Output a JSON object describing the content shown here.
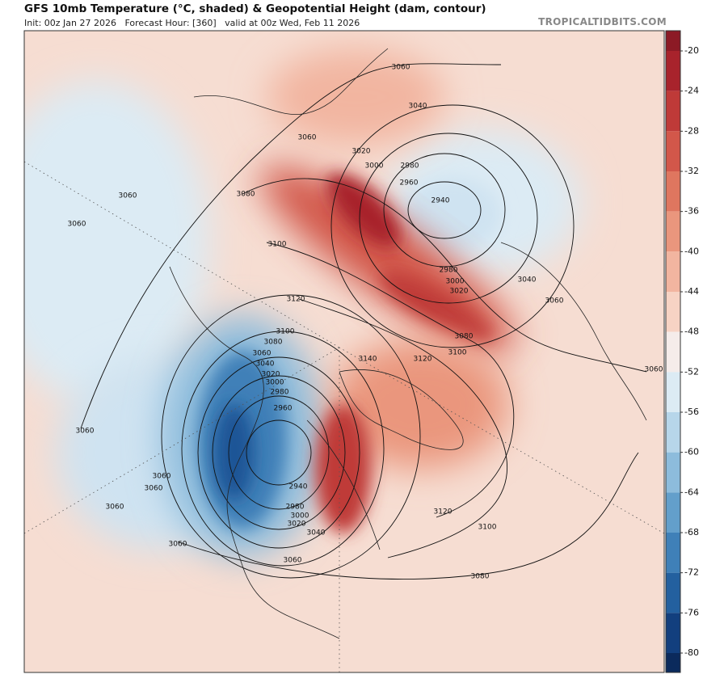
{
  "header": {
    "title": "GFS 10mb Temperature (°C, shaded) & Geopotential Height (dam, contour)",
    "subtitle": "Init: 00z Jan 27 2026   Forecast Hour: [360]   valid at 00z Wed, Feb 11 2026",
    "brand": "TROPICALTIDBITS.COM"
  },
  "colorbar": {
    "ticks": [
      -20,
      -24,
      -28,
      -32,
      -36,
      -40,
      -44,
      -48,
      -52,
      -56,
      -60,
      -64,
      -68,
      -72,
      -76,
      -80
    ],
    "colors": [
      "#8c1a25",
      "#a8232c",
      "#bf3a38",
      "#d2574a",
      "#df765f",
      "#ea967d",
      "#f2b5a0",
      "#f7d3c4",
      "#f5ecea",
      "#dcebf4",
      "#b7d6ea",
      "#8dbcdc",
      "#639fcb",
      "#3f80b8",
      "#23609f",
      "#123f7e",
      "#0b2a5c"
    ]
  },
  "contour_labels": [
    "3060",
    "3040",
    "3060",
    "3020",
    "3000",
    "2980",
    "2960",
    "2940",
    "3080",
    "3060",
    "3060",
    "3100",
    "2980",
    "3000",
    "3020",
    "3040",
    "3060",
    "3120",
    "3100",
    "3080",
    "3060",
    "3040",
    "3020",
    "3000",
    "2980",
    "2960",
    "3140",
    "3120",
    "3100",
    "3080",
    "3060",
    "3060",
    "3060",
    "3060",
    "3060",
    "2940",
    "2980",
    "3000",
    "3020",
    "3040",
    "3060",
    "3120",
    "3100",
    "3080",
    "3060"
  ]
}
